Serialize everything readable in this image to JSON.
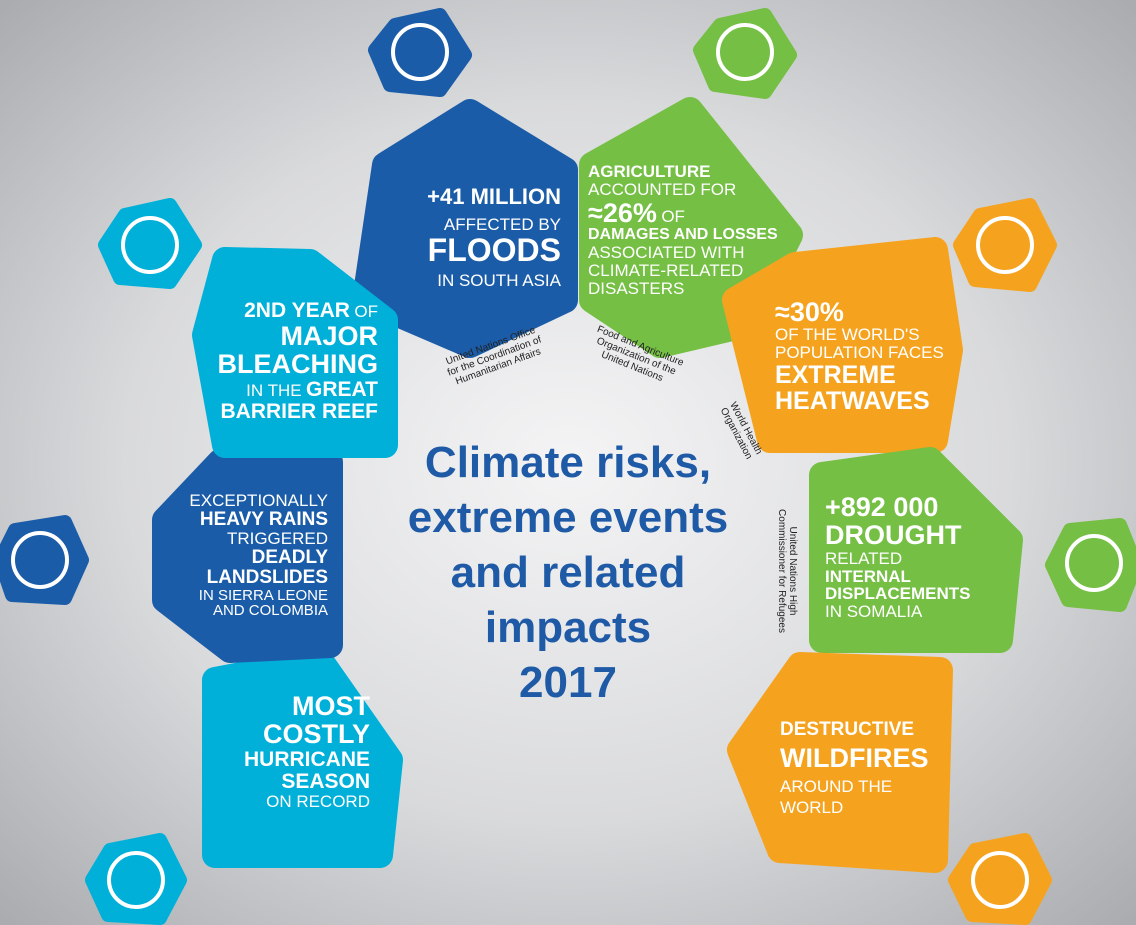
{
  "title": [
    "Climate risks,",
    "extreme events",
    "and related",
    "impacts",
    "2017"
  ],
  "panels": [
    {
      "lines": [
        [
          "+41 MILLION"
        ],
        [
          "AFFECTED BY"
        ],
        [
          "FLOODS"
        ],
        [
          "IN SOUTH ASIA"
        ]
      ],
      "source": [
        "United Nations Office",
        "for the Coordination of",
        "Humanitarian Affairs"
      ]
    },
    {
      "lines": [
        [
          "AGRICULTURE"
        ],
        [
          "ACCOUNTED FOR"
        ],
        [
          "≈26%",
          "OF"
        ],
        [
          "DAMAGES AND LOSSES"
        ],
        [
          "ASSOCIATED WITH"
        ],
        [
          "CLIMATE-RELATED"
        ],
        [
          "DISASTERS"
        ]
      ],
      "source": [
        "Food and Agriculture",
        "Organization of the",
        "United Nations"
      ]
    },
    {
      "lines": [
        [
          "≈30%"
        ],
        [
          "OF THE WORLD'S"
        ],
        [
          "POPULATION FACES"
        ],
        [
          "EXTREME"
        ],
        [
          "HEATWAVES"
        ]
      ],
      "source": [
        "World Health",
        "Organization"
      ]
    },
    {
      "lines": [
        [
          "+892 000"
        ],
        [
          "DROUGHT"
        ],
        [
          "RELATED"
        ],
        [
          "INTERNAL"
        ],
        [
          "DISPLACEMENTS"
        ],
        [
          "IN SOMALIA"
        ]
      ],
      "source": [
        "United Nations High",
        "Commissioner for Refugees"
      ]
    },
    {
      "lines": [
        [
          "DESTRUCTIVE"
        ],
        [
          "WILDFIRES"
        ],
        [
          "AROUND THE"
        ],
        [
          "WORLD"
        ]
      ]
    },
    {
      "lines": [
        [
          "MOST"
        ],
        [
          "COSTLY"
        ],
        [
          "HURRICANE"
        ],
        [
          "SEASON"
        ],
        [
          "ON RECORD"
        ]
      ]
    },
    {
      "lines": [
        [
          "EXCEPTIONALLY"
        ],
        [
          "HEAVY RAINS"
        ],
        [
          "TRIGGERED"
        ],
        [
          "DEADLY"
        ],
        [
          "LANDSLIDES"
        ],
        [
          "IN SIERRA LEONE"
        ],
        [
          "AND COLOMBIA"
        ]
      ]
    },
    {
      "lines": [
        [
          "2ND YEAR",
          "OF"
        ],
        [
          "MAJOR"
        ],
        [
          "BLEACHING"
        ],
        [
          "IN THE",
          "GREAT"
        ],
        [
          "BARRIER REEF"
        ]
      ]
    }
  ]
}
